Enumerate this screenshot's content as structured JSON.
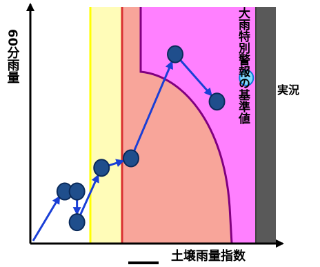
{
  "chart_data": {
    "type": "scatter",
    "title": "",
    "xlabel": "土壌雨量指数",
    "ylabel": "60分雨量",
    "zones": [
      {
        "name": "white",
        "color": "#ffffff"
      },
      {
        "name": "yellow",
        "color": "#fffcb8"
      },
      {
        "name": "salmon",
        "color": "#f8a59a"
      },
      {
        "name": "magenta",
        "color": "#ff80ff"
      },
      {
        "name": "gray",
        "color": "#595959"
      }
    ],
    "boundary_line_color": "#800080",
    "yellow_line_color": "#ffff00",
    "red_line_color": "#d93030",
    "annotation": {
      "text": "大雨特別警報の基準値"
    },
    "points": [
      {
        "x": 0.14,
        "y": 0.22,
        "kind": "forecast"
      },
      {
        "x": 0.19,
        "y": 0.22,
        "kind": "forecast"
      },
      {
        "x": 0.19,
        "y": 0.09,
        "kind": "forecast"
      },
      {
        "x": 0.29,
        "y": 0.32,
        "kind": "forecast"
      },
      {
        "x": 0.41,
        "y": 0.36,
        "kind": "forecast"
      },
      {
        "x": 0.59,
        "y": 0.8,
        "kind": "forecast"
      },
      {
        "x": 0.76,
        "y": 0.6,
        "kind": "forecast"
      },
      {
        "x": 0.88,
        "y": 0.7,
        "kind": "actual"
      }
    ],
    "arrows": [
      {
        "from": 0,
        "to": 1
      },
      {
        "from": 1,
        "to": 2
      },
      {
        "from": 2,
        "to": 3
      },
      {
        "from": 3,
        "to": 4
      },
      {
        "from": 4,
        "to": 5
      },
      {
        "from": 5,
        "to": 6
      }
    ],
    "actual_label": "実況",
    "colors": {
      "point_fill": "#1f4e8c",
      "point_edge": "#0a2a5a",
      "arrow": "#1a3fd6",
      "actual_fill": "#7fd8ff",
      "actual_edge": "#0a7bd6",
      "actual_label": "#1a3fd6"
    }
  }
}
